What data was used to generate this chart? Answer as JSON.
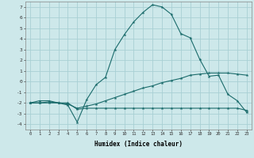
{
  "xlabel": "Humidex (Indice chaleur)",
  "background_color": "#cde8ea",
  "grid_color": "#a8d0d4",
  "line_color": "#1a6b6b",
  "xlim": [
    -0.5,
    23.5
  ],
  "ylim": [
    -4.5,
    7.5
  ],
  "xticks": [
    0,
    1,
    2,
    3,
    4,
    5,
    6,
    7,
    8,
    9,
    10,
    11,
    12,
    13,
    14,
    15,
    16,
    17,
    18,
    19,
    20,
    21,
    22,
    23
  ],
  "yticks": [
    -4,
    -3,
    -2,
    -1,
    0,
    1,
    2,
    3,
    4,
    5,
    6,
    7
  ],
  "series": [
    {
      "x": [
        0,
        1,
        2,
        3,
        4,
        5,
        6,
        7,
        8,
        9,
        10,
        11,
        12,
        13,
        14,
        15,
        16,
        17,
        18,
        19,
        20,
        21,
        22,
        23
      ],
      "y": [
        -2.0,
        -1.8,
        -1.8,
        -2.0,
        -2.2,
        -3.8,
        -1.7,
        -0.3,
        0.4,
        3.0,
        4.4,
        5.6,
        6.5,
        7.2,
        7.0,
        6.3,
        4.5,
        4.1,
        2.1,
        0.5,
        0.6,
        -1.2,
        -1.8,
        -2.9
      ]
    },
    {
      "x": [
        0,
        1,
        2,
        3,
        4,
        5,
        6,
        7,
        8,
        9,
        10,
        11,
        12,
        13,
        14,
        15,
        16,
        17,
        18,
        19,
        20,
        21,
        22,
        23
      ],
      "y": [
        -2.0,
        -2.0,
        -1.9,
        -2.0,
        -2.1,
        -2.5,
        -2.3,
        -2.1,
        -1.8,
        -1.5,
        -1.2,
        -0.9,
        -0.6,
        -0.4,
        -0.1,
        0.1,
        0.3,
        0.6,
        0.7,
        0.8,
        0.8,
        0.8,
        0.7,
        0.6
      ]
    },
    {
      "x": [
        0,
        1,
        2,
        3,
        4,
        5,
        6,
        7,
        8,
        9,
        10,
        11,
        12,
        13,
        14,
        15,
        16,
        17,
        18,
        19,
        20,
        21,
        22,
        23
      ],
      "y": [
        -2.0,
        -2.0,
        -2.0,
        -2.0,
        -2.0,
        -2.6,
        -2.5,
        -2.5,
        -2.5,
        -2.5,
        -2.5,
        -2.5,
        -2.5,
        -2.5,
        -2.5,
        -2.5,
        -2.5,
        -2.5,
        -2.5,
        -2.5,
        -2.5,
        -2.5,
        -2.5,
        -2.7
      ]
    }
  ]
}
